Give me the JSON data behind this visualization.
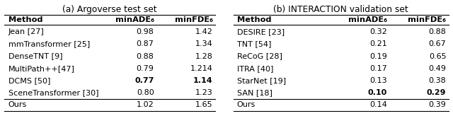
{
  "title_a": "(a) Argoverse test set",
  "title_b": "(b) INTERACTION validation set",
  "table_a": {
    "headers": [
      "Method",
      "minADE₆",
      "minFDE₆"
    ],
    "rows": [
      [
        "Jean [27]",
        "0.98",
        "1.42"
      ],
      [
        "mmTransformer [25]",
        "0.87",
        "1.34"
      ],
      [
        "DenseTNT [9]",
        "0.88",
        "1.28"
      ],
      [
        "MultiPath++[47]",
        "0.79",
        "1.214"
      ],
      [
        "DCMS [50]",
        "0.77",
        "1.14"
      ],
      [
        "SceneTransformer [30]",
        "0.80",
        "1.23"
      ],
      [
        "Ours",
        "1.02",
        "1.65"
      ]
    ],
    "bold_rows": [
      4
    ],
    "ours_row": 6
  },
  "table_b": {
    "headers": [
      "Method",
      "minADE₆",
      "minFDE₆"
    ],
    "rows": [
      [
        "DESIRE [23]",
        "0.32",
        "0.88"
      ],
      [
        "TNT [54]",
        "0.21",
        "0.67"
      ],
      [
        "ReCoG [28]",
        "0.19",
        "0.65"
      ],
      [
        "ITRA [40]",
        "0.17",
        "0.49"
      ],
      [
        "StarNet [19]",
        "0.13",
        "0.38"
      ],
      [
        "SAN [18]",
        "0.10",
        "0.29"
      ],
      [
        "Ours",
        "0.14",
        "0.39"
      ]
    ],
    "bold_rows": [
      5
    ],
    "ours_row": 6
  },
  "bg_color": "#ffffff",
  "text_color": "#000000",
  "header_fontsize": 8.2,
  "cell_fontsize": 8.0,
  "title_fontsize": 8.8
}
